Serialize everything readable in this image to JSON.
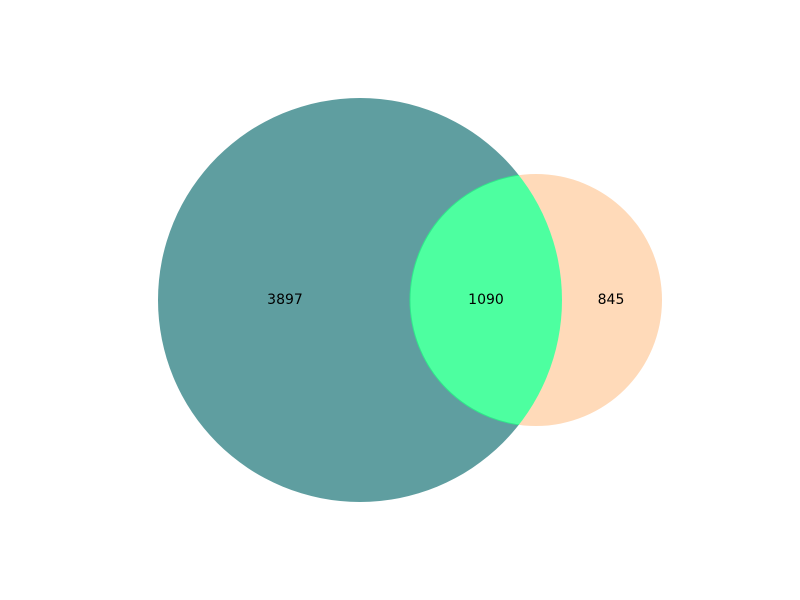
{
  "chart_data": {
    "type": "venn",
    "sets": 2,
    "regions": [
      {
        "id": "left-only",
        "value": 3897,
        "label": "3897"
      },
      {
        "id": "intersection",
        "value": 1090,
        "label": "1090"
      },
      {
        "id": "right-only",
        "value": 845,
        "label": "845"
      }
    ],
    "colors": {
      "left": "#5f9ea0",
      "right": "#ffdab9",
      "intersection": "#4dffa0"
    }
  }
}
